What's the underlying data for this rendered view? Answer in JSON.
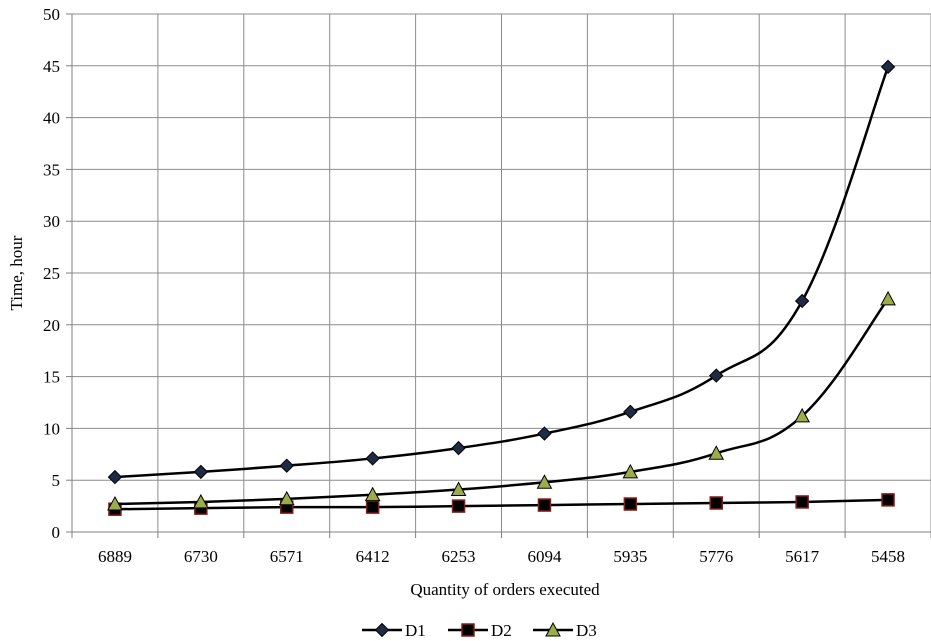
{
  "chart_data": {
    "type": "line",
    "xlabel": "Quantity of orders executed",
    "ylabel": "Time, hour",
    "categories": [
      "6889",
      "6730",
      "6571",
      "6412",
      "6253",
      "6094",
      "5935",
      "5776",
      "5617",
      "5458"
    ],
    "ylim": [
      0,
      50
    ],
    "yticks": [
      0,
      5,
      10,
      15,
      20,
      25,
      30,
      35,
      40,
      45,
      50
    ],
    "grid": true,
    "legend_position": "bottom",
    "series": [
      {
        "name": "D1",
        "marker": "diamond",
        "marker_color": "#1f2a44",
        "values": [
          5.3,
          5.8,
          6.4,
          7.1,
          8.1,
          9.5,
          11.6,
          15.1,
          22.3,
          44.9
        ]
      },
      {
        "name": "D2",
        "marker": "square",
        "marker_color": "#8b1a1a",
        "values": [
          2.2,
          2.3,
          2.4,
          2.4,
          2.5,
          2.6,
          2.7,
          2.8,
          2.9,
          3.1
        ]
      },
      {
        "name": "D3",
        "marker": "triangle",
        "marker_color": "#9aad4a",
        "values": [
          2.7,
          2.9,
          3.2,
          3.6,
          4.1,
          4.8,
          5.8,
          7.6,
          11.2,
          22.5
        ]
      }
    ]
  }
}
